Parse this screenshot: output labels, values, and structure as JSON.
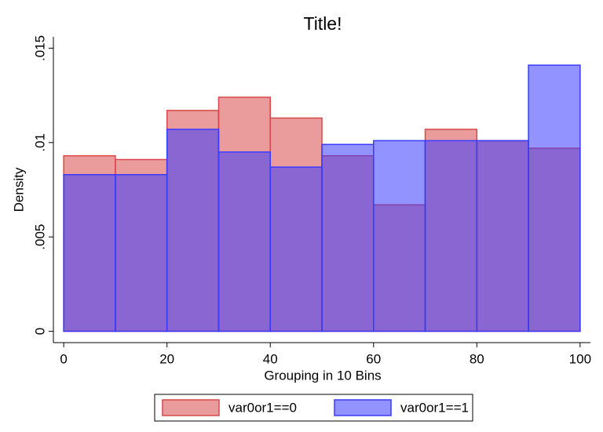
{
  "chart_data": {
    "type": "histogram",
    "title": "Title!",
    "x_label": "Grouping in 10 Bins",
    "y_label": "Density",
    "bins": [
      0,
      10,
      20,
      30,
      40,
      50,
      60,
      70,
      80,
      90,
      100
    ],
    "series": [
      {
        "name": "var0or1==0",
        "color": "#d84848",
        "values": [
          0.0093,
          0.0091,
          0.0117,
          0.0124,
          0.0113,
          0.0093,
          0.0067,
          0.0107,
          0.0101,
          0.0097
        ]
      },
      {
        "name": "var0or1==1",
        "color": "#3a3aff",
        "values": [
          0.0083,
          0.0083,
          0.0107,
          0.0095,
          0.0087,
          0.0099,
          0.0101,
          0.0101,
          0.0101,
          0.0141
        ]
      }
    ],
    "xlim": [
      -2,
      102
    ],
    "ylim": [
      -0.0006,
      0.0156
    ],
    "xticks": [
      0,
      20,
      40,
      60,
      80,
      100
    ],
    "yticks": [
      {
        "value": 0,
        "label": "0"
      },
      {
        "value": 0.005,
        "label": ".005"
      },
      {
        "value": 0.01,
        "label": ".01"
      },
      {
        "value": 0.015,
        "label": ".015"
      }
    ],
    "legend": "bottom"
  }
}
